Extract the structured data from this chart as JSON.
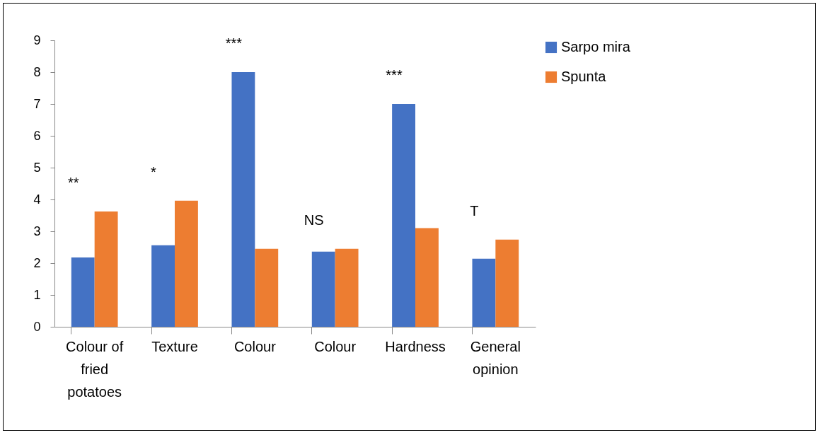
{
  "chart_data": {
    "type": "bar",
    "categories": [
      "Colour of fried potatoes",
      "Texture",
      "Colour",
      "Colour",
      "Hardness",
      "General opinion"
    ],
    "series": [
      {
        "name": "Sarpo mira",
        "color": "#4472c4",
        "values": [
          2.18,
          2.56,
          8,
          2.36,
          7,
          2.14
        ]
      },
      {
        "name": "Spunta",
        "color": "#ed7d31",
        "values": [
          3.62,
          3.96,
          2.45,
          2.45,
          3.1,
          2.74
        ]
      }
    ],
    "ylim": [
      0,
      9
    ],
    "yticks": [
      0,
      1,
      2,
      3,
      4,
      5,
      6,
      7,
      8,
      9
    ],
    "grid": false,
    "legend": "right",
    "annotations": [
      "**",
      "*",
      "***",
      "NS",
      "***",
      "T"
    ]
  }
}
